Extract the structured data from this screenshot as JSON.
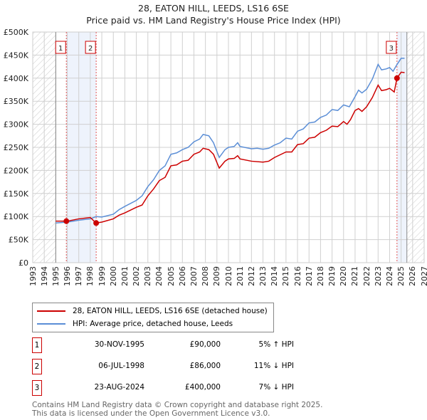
{
  "title": "28, EATON HILL, LEEDS, LS16 6SE",
  "subtitle": "Price paid vs. HM Land Registry's House Price Index (HPI)",
  "chart_data": {
    "type": "line",
    "xlim": [
      1993,
      2027
    ],
    "ylim": [
      0,
      500000
    ],
    "x_ticks": [
      "1993",
      "1994",
      "1995",
      "1996",
      "1997",
      "1998",
      "1999",
      "2000",
      "2001",
      "2002",
      "2003",
      "2004",
      "2005",
      "2006",
      "2007",
      "2008",
      "2009",
      "2010",
      "2011",
      "2012",
      "2013",
      "2014",
      "2015",
      "2016",
      "2017",
      "2018",
      "2019",
      "2020",
      "2021",
      "2022",
      "2023",
      "2024",
      "2025",
      "2026",
      "2027"
    ],
    "y_ticks": [
      {
        "v": 0,
        "label": "£0"
      },
      {
        "v": 50000,
        "label": "£50K"
      },
      {
        "v": 100000,
        "label": "£100K"
      },
      {
        "v": 150000,
        "label": "£150K"
      },
      {
        "v": 200000,
        "label": "£200K"
      },
      {
        "v": 250000,
        "label": "£250K"
      },
      {
        "v": 300000,
        "label": "£300K"
      },
      {
        "v": 350000,
        "label": "£350K"
      },
      {
        "v": 400000,
        "label": "£400K"
      },
      {
        "v": 450000,
        "label": "£450K"
      },
      {
        "v": 500000,
        "label": "£500K"
      }
    ],
    "data_range": [
      1995,
      2025.5
    ],
    "series": [
      {
        "name": "28, EATON HILL, LEEDS, LS16 6SE (detached house)",
        "color": "#cc0000",
        "x": [
          1995,
          1996,
          1997,
          1998,
          1998.5,
          1999,
          2000,
          2000.5,
          2001,
          2002,
          2002.5,
          2003,
          2003.5,
          2004,
          2004.5,
          2005,
          2005.5,
          2006,
          2006.5,
          2007,
          2007.5,
          2007.8,
          2008.3,
          2008.7,
          2009.2,
          2009.7,
          2010,
          2010.5,
          2010.8,
          2011,
          2012,
          2013,
          2013.5,
          2014,
          2015,
          2015.5,
          2016,
          2016.5,
          2017,
          2017.5,
          2018,
          2018.5,
          2019,
          2019.5,
          2020,
          2020.3,
          2020.6,
          2021,
          2021.3,
          2021.6,
          2022,
          2022.5,
          2023,
          2023.3,
          2023.7,
          2024,
          2024.4,
          2024.64,
          2025,
          2025.3
        ],
        "values": [
          90,
          90,
          95,
          98,
          86,
          88,
          95,
          103,
          108,
          120,
          125,
          145,
          160,
          178,
          185,
          210,
          212,
          220,
          222,
          235,
          240,
          248,
          245,
          235,
          205,
          220,
          225,
          226,
          232,
          225,
          220,
          218,
          220,
          228,
          240,
          240,
          256,
          258,
          270,
          272,
          282,
          287,
          296,
          295,
          306,
          300,
          310,
          330,
          334,
          328,
          338,
          358,
          385,
          373,
          375,
          378,
          370,
          400,
          413,
          412
        ]
      },
      {
        "name": "HPI: Average price, detached house, Leeds",
        "color": "#5b8ed6",
        "x": [
          1995,
          1996,
          1997,
          1998,
          1998.5,
          1999,
          2000,
          2000.5,
          2001,
          2002,
          2002.5,
          2003,
          2003.5,
          2004,
          2004.5,
          2005,
          2005.5,
          2006,
          2006.5,
          2007,
          2007.5,
          2007.8,
          2008.3,
          2008.7,
          2009.2,
          2009.7,
          2010,
          2010.5,
          2010.8,
          2011,
          2012,
          2012.5,
          2013,
          2013.5,
          2014,
          2014.5,
          2015,
          2015.5,
          2016,
          2016.5,
          2017,
          2017.5,
          2018,
          2018.5,
          2019,
          2019.5,
          2020,
          2020.5,
          2021,
          2021.3,
          2021.6,
          2022,
          2022.5,
          2023,
          2023.3,
          2023.7,
          2024,
          2024.3,
          2024.6,
          2025,
          2025.3
        ],
        "values": [
          86,
          88,
          92,
          95,
          100,
          99,
          105,
          115,
          122,
          135,
          145,
          165,
          180,
          200,
          210,
          235,
          238,
          245,
          250,
          262,
          268,
          278,
          275,
          260,
          228,
          245,
          250,
          252,
          260,
          252,
          247,
          248,
          246,
          248,
          255,
          260,
          270,
          268,
          285,
          290,
          303,
          305,
          315,
          320,
          332,
          330,
          342,
          338,
          360,
          374,
          368,
          376,
          398,
          430,
          418,
          420,
          423,
          415,
          428,
          443,
          443
        ]
      }
    ],
    "value_unit": "thousand GBP",
    "sales": [
      {
        "label": "1",
        "x": 1995.92,
        "value": 90,
        "date": "30-NOV-1995",
        "price": "£90,000",
        "delta": "5% ↑ HPI"
      },
      {
        "label": "2",
        "x": 1998.51,
        "value": 86,
        "date": "06-JUL-1998",
        "price": "£86,000",
        "delta": "11% ↓ HPI"
      },
      {
        "label": "3",
        "x": 2024.64,
        "value": 400,
        "date": "23-AUG-2024",
        "price": "£400,000",
        "delta": "7% ↓ HPI"
      }
    ]
  },
  "legend": {
    "red": "28, EATON HILL, LEEDS, LS16 6SE (detached house)",
    "blue": "HPI: Average price, detached house, Leeds"
  },
  "footer": {
    "line1": "Contains HM Land Registry data © Crown copyright and database right 2025.",
    "line2": "This data is licensed under the Open Government Licence v3.0."
  }
}
